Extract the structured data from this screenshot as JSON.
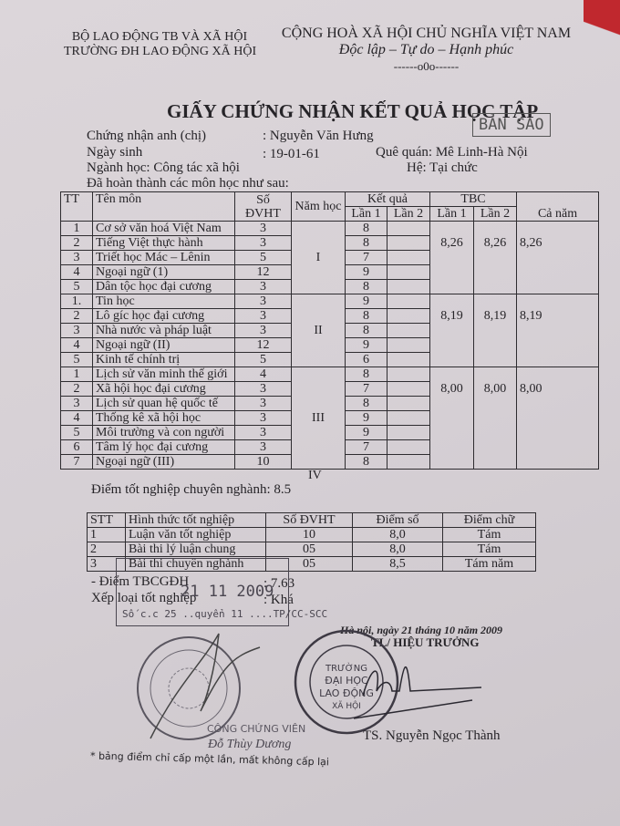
{
  "header": {
    "ministry": "BỘ LAO ĐỘNG TB VÀ XÃ HỘI",
    "school": "TRƯỜNG ĐH LAO ĐỘNG XÃ HỘI",
    "country": "CỘNG HOÀ XÃ HỘI CHỦ NGHĨA VIỆT NAM",
    "motto": "Độc lập – Tự do – Hạnh phúc",
    "divider": "------o0o------"
  },
  "title": "GIẤY CHỨNG NHẬN KẾT QUẢ HỌC TẬP",
  "copy_stamp": "BẢN SAO",
  "student": {
    "name_label": "Chứng nhận anh (chị)",
    "name": ": Nguyễn Văn Hưng",
    "dob_label": "Ngày sinh",
    "dob": ": 19-01-61",
    "hometown": "Quê quán: Mê Linh-Hà Nội",
    "major": "Ngành học:  Công tác xã hội",
    "mode": "Hệ: Tại chức",
    "intro": "Đã hoàn thành các môn học như sau:"
  },
  "courses": {
    "headers": {
      "tt": "TT",
      "name": "Tên môn",
      "credits": "Số ĐVHT",
      "year": "Năm học",
      "result": "Kết quả",
      "tbc": "TBC",
      "attempt1": "Lần 1",
      "attempt2": "Lần 2",
      "full_year": "Cả năm"
    },
    "years": [
      {
        "year": "I",
        "tbc1": "8,26",
        "tbc2": "8,26",
        "full": "8,26",
        "rows": [
          [
            "1",
            "Cơ sở văn hoá Việt Nam",
            "3",
            "8",
            ""
          ],
          [
            "2",
            "Tiếng Việt thực hành",
            "3",
            "8",
            ""
          ],
          [
            "3",
            "Triết học Mác – Lênin",
            "5",
            "7",
            ""
          ],
          [
            "4",
            "Ngoại ngữ (1)",
            "12",
            "9",
            ""
          ],
          [
            "5",
            "Dân tộc học đại cương",
            "3",
            "8",
            ""
          ]
        ]
      },
      {
        "year": "II",
        "tbc1": "8,19",
        "tbc2": "8,19",
        "full": "8,19",
        "rows": [
          [
            "1.",
            "Tin học",
            "3",
            "9",
            ""
          ],
          [
            "2",
            "Lô gíc học đại cương",
            "3",
            "8",
            ""
          ],
          [
            "3",
            "Nhà nước và pháp luật",
            "3",
            "8",
            ""
          ],
          [
            "4",
            "Ngoại ngữ (II)",
            "12",
            "9",
            ""
          ],
          [
            "5",
            "Kinh tế chính trị",
            "5",
            "6",
            ""
          ]
        ]
      },
      {
        "year": "III",
        "tbc1": "8,00",
        "tbc2": "8,00",
        "full": "8,00",
        "rows": [
          [
            "1",
            "Lịch sử văn minh thế giới",
            "4",
            "8",
            ""
          ],
          [
            "2",
            "Xã hội học đại cương",
            "3",
            "7",
            ""
          ],
          [
            "3",
            "Lịch sử quan hệ quốc tế",
            "3",
            "8",
            ""
          ],
          [
            "4",
            "Thống kê xã hội học",
            "3",
            "9",
            ""
          ],
          [
            "5",
            "Môi trường và con người",
            "3",
            "9",
            ""
          ],
          [
            "6",
            "Tâm lý học đại cương",
            "3",
            "7",
            ""
          ],
          [
            "7",
            "Ngoại ngữ (III)",
            "10",
            "8",
            ""
          ]
        ]
      }
    ],
    "year_iv": "IV"
  },
  "graduation": {
    "major_score": "Điểm tốt nghiệp chuyên nghành: 8.5",
    "headers": [
      "STT",
      "Hình thức tốt nghiệp",
      "Số ĐVHT",
      "Điểm số",
      "Điểm chữ"
    ],
    "rows": [
      [
        "1",
        "Luận văn tốt nghiệp",
        "10",
        "8,0",
        "Tám"
      ],
      [
        "2",
        "Bài thi lý luận chung",
        "05",
        "8,0",
        "Tám"
      ],
      [
        "3",
        "Bài thi chuyên nghành",
        "05",
        "8,5",
        "Tám năm"
      ]
    ],
    "gpa_label": "- Điểm TBCGĐH",
    "gpa": ": 7.63",
    "rank_label": "Xếp loại tốt nghiệp",
    "rank": ": Khá"
  },
  "notary_box": {
    "date": "21 11 2009",
    "number": "Số c.c 25 ..quyển 11 ....TP/CC-SCC"
  },
  "signature": {
    "place_date": "Hà nội, ngày 21 tháng 10 năm 2009",
    "role": "TL/ HIỆU TRƯỞNG",
    "signer": "TS. Nguyễn Ngọc Thành",
    "seal_text": "TRƯỜNG ĐẠI HỌC LAO ĐỘNG XÃ HỘI"
  },
  "notary": {
    "title": "CÔNG CHỨNG VIÊN",
    "name": "Đỗ Thùy Dương"
  },
  "footnote": "* bảng điểm chỉ cấp một lần, mất không cấp lại",
  "colors": {
    "paper": "#d8d2d6",
    "ink": "#262428",
    "stamp": "#4a4650",
    "corner_red": "#c0282e"
  }
}
